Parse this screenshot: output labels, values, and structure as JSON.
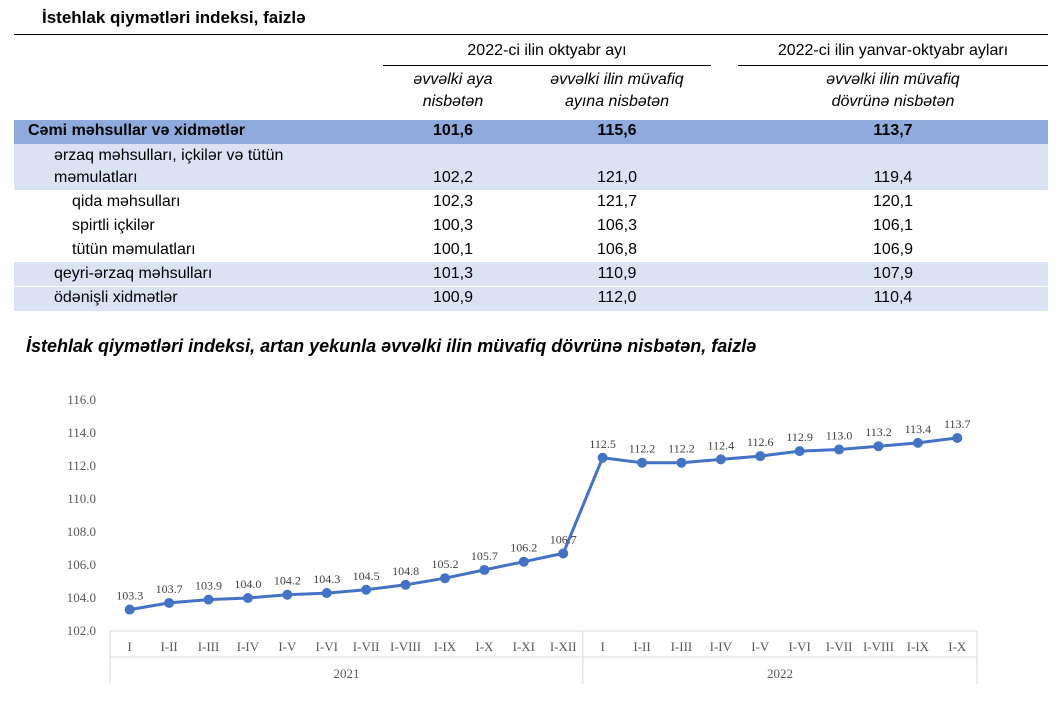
{
  "table": {
    "title": "İstehlak qiymətləri indeksi, faizlə",
    "group1_header": "2022-ci ilin oktyabr ayı",
    "group2_header": "2022-ci ilin yanvar-oktyabr ayları",
    "col1_line1": "əvvəlki aya",
    "col1_line2": "nisbətən",
    "col2_line1": "əvvəlki ilin müvafiq",
    "col2_line2": "ayına nisbətən",
    "col3_line1": "əvvəlki ilin müvafiq",
    "col3_line2": "dövrünə nisbətən",
    "rows": [
      {
        "label": "Cəmi məhsullar və xidmətlər",
        "label2": "",
        "v1": "101,6",
        "v2": "115,6",
        "v3": "113,7"
      },
      {
        "label": "ərzaq məhsulları, içkilər və tütün",
        "label2": "məmulatları",
        "v1": "102,2",
        "v2": "121,0",
        "v3": "119,4"
      },
      {
        "label": "qida məhsulları",
        "label2": "",
        "v1": "102,3",
        "v2": "121,7",
        "v3": "120,1"
      },
      {
        "label": "spirtli içkilər",
        "label2": "",
        "v1": "100,3",
        "v2": "106,3",
        "v3": "106,1"
      },
      {
        "label": "tütün məmulatları",
        "label2": "",
        "v1": "100,1",
        "v2": "106,8",
        "v3": "106,9"
      },
      {
        "label": "qeyri-ərzaq məhsulları",
        "label2": "",
        "v1": "101,3",
        "v2": "110,9",
        "v3": "107,9"
      },
      {
        "label": "ödənişli xidmətlər",
        "label2": "",
        "v1": "100,9",
        "v2": "112,0",
        "v3": "110,4"
      }
    ]
  },
  "chart_data": {
    "type": "line",
    "title": "İstehlak qiymətləri indeksi, artan yekunla əvvəlki ilin müvafiq dövrünə nisbətən, faizlə",
    "categories": [
      "I",
      "I-II",
      "I-III",
      "I-IV",
      "I-V",
      "I-VI",
      "I-VII",
      "I-VIII",
      "I-IX",
      "I-X",
      "I-XI",
      "I-XII",
      "I",
      "I-II",
      "I-III",
      "I-IV",
      "I-V",
      "I-VI",
      "I-VII",
      "I-VIII",
      "I-IX",
      "I-X"
    ],
    "groups": [
      {
        "label": "2021",
        "count": 12
      },
      {
        "label": "2022",
        "count": 10
      }
    ],
    "series": [
      {
        "values": [
          103.3,
          103.7,
          103.9,
          104.0,
          104.2,
          104.3,
          104.5,
          104.8,
          105.2,
          105.7,
          106.2,
          106.7,
          112.5,
          112.2,
          112.2,
          112.4,
          112.6,
          112.9,
          113.0,
          113.2,
          113.4,
          113.7
        ],
        "labels": [
          "103.3",
          "103.7",
          "103.9",
          "104.0",
          "104.2",
          "104.3",
          "104.5",
          "104.8",
          "105.2",
          "105.7",
          "106.2",
          "106.7",
          "112.5",
          "112.2",
          "112.2",
          "112.4",
          "112.6",
          "112.9",
          "113.0",
          "113.2",
          "113.4",
          "113.7"
        ]
      }
    ],
    "ylim": [
      102.0,
      116.0
    ],
    "yticks": [
      "102.0",
      "104.0",
      "106.0",
      "108.0",
      "110.0",
      "112.0",
      "114.0",
      "116.0"
    ],
    "line_color": "#4472c4",
    "grid": false,
    "legend": false
  }
}
